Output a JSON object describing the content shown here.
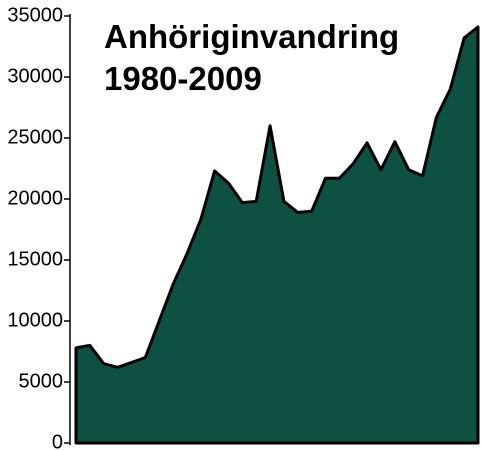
{
  "chart_data": {
    "type": "area",
    "title": "Anhöriginvandring",
    "subtitle": "1980-2009",
    "categories": [
      null,
      null,
      null,
      null,
      null,
      null,
      null,
      null,
      null,
      null,
      null,
      null,
      null,
      null,
      null,
      null,
      null,
      null,
      null,
      null,
      null,
      null,
      null,
      null,
      null,
      null,
      null,
      null,
      null,
      null
    ],
    "values": [
      7800,
      8000,
      6500,
      6200,
      6600,
      7000,
      10000,
      13000,
      15500,
      18300,
      22300,
      21300,
      19700,
      19800,
      26000,
      19800,
      18900,
      19000,
      21700,
      21700,
      22900,
      24600,
      22400,
      24700,
      22400,
      21900,
      26700,
      29000,
      33200,
      34100
    ],
    "color": "#0d5143",
    "ylim": [
      0,
      35000
    ],
    "yticks": [
      0,
      5000,
      10000,
      15000,
      20000,
      25000,
      30000,
      35000
    ]
  }
}
